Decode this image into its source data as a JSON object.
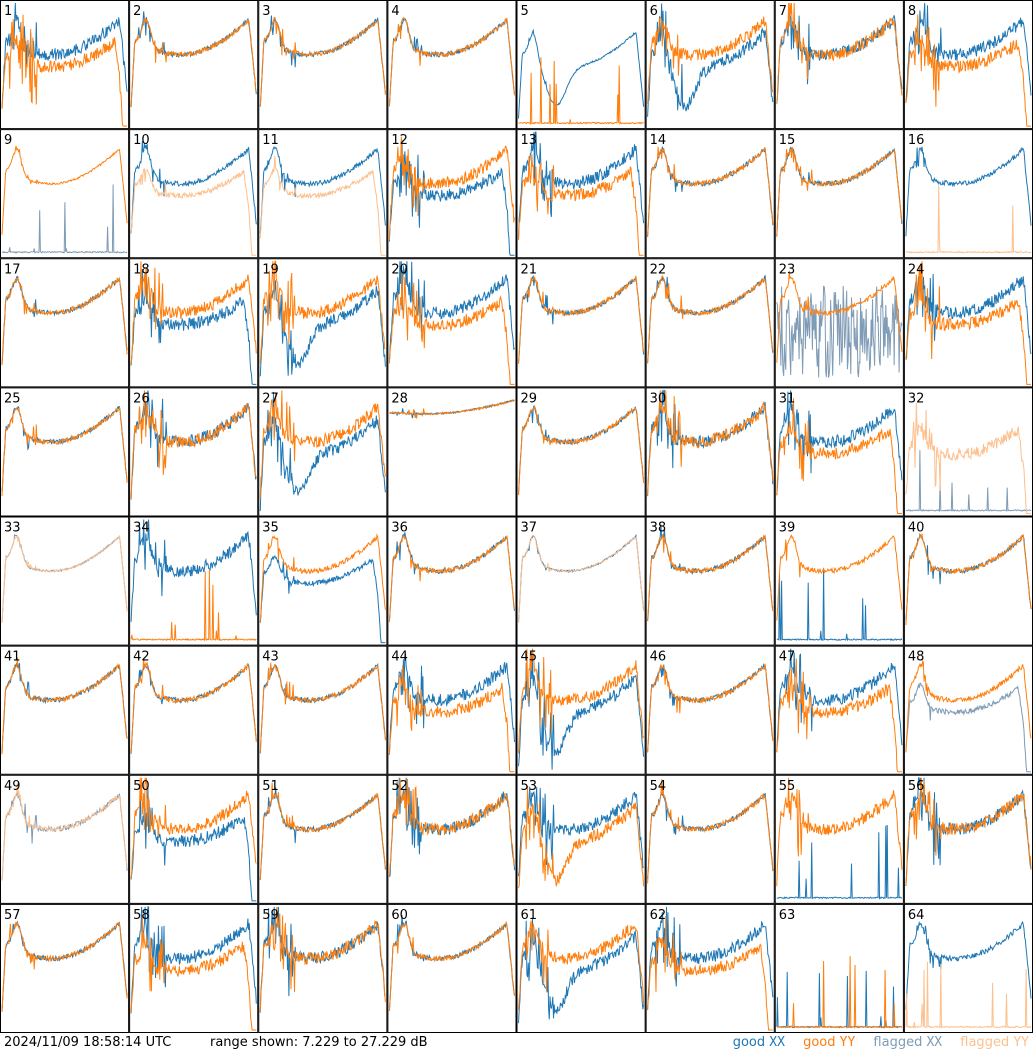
{
  "chart_data": {
    "type": "line",
    "layout": "8x8 small multiples",
    "panels": [
      "1",
      "2",
      "3",
      "4",
      "5",
      "6",
      "7",
      "8",
      "9",
      "10",
      "11",
      "12",
      "13",
      "14",
      "15",
      "16",
      "17",
      "18",
      "19",
      "20",
      "21",
      "22",
      "23",
      "24",
      "25",
      "26",
      "27",
      "28",
      "29",
      "30",
      "31",
      "32",
      "33",
      "34",
      "35",
      "36",
      "37",
      "38",
      "39",
      "40",
      "41",
      "42",
      "43",
      "44",
      "45",
      "46",
      "47",
      "48",
      "49",
      "50",
      "51",
      "52",
      "53",
      "54",
      "55",
      "56",
      "57",
      "58",
      "59",
      "60",
      "61",
      "62",
      "63",
      "64"
    ],
    "ylim": [
      7.229,
      27.229
    ],
    "yunit": "dB",
    "grid": false,
    "legend_position": "bottom-right",
    "series_legend": [
      {
        "word": "good",
        "pol": "XX",
        "color": "#1f77b4"
      },
      {
        "word": "good",
        "pol": "YY",
        "color": "#ff7f0e"
      },
      {
        "word": "flagged",
        "pol": "XX",
        "color": "#7f9bb5"
      },
      {
        "word": "flagged",
        "pol": "YY",
        "color": "#fdc08e"
      }
    ],
    "panel_styles": {
      "1": {
        "xx": "good",
        "yy": "good",
        "xxShape": "normal",
        "yyShape": "low",
        "noise": "high"
      },
      "2": {
        "xx": "good",
        "yy": "good",
        "xxShape": "normal",
        "yyShape": "normal",
        "noise": "mid"
      },
      "3": {
        "xx": "good",
        "yy": "good",
        "xxShape": "normal",
        "yyShape": "normal",
        "noise": "mid"
      },
      "4": {
        "xx": "good",
        "yy": "good",
        "xxShape": "normal",
        "yyShape": "normal",
        "noise": "mid"
      },
      "5": {
        "xx": "good",
        "yy": "good",
        "xxShape": "dip",
        "yyShape": "dead",
        "noise": "low"
      },
      "6": {
        "xx": "good",
        "yy": "good",
        "xxShape": "dip",
        "yyShape": "normal",
        "noise": "high"
      },
      "7": {
        "xx": "good",
        "yy": "good",
        "xxShape": "normal",
        "yyShape": "normal",
        "noise": "high"
      },
      "8": {
        "xx": "good",
        "yy": "good",
        "xxShape": "normal",
        "yyShape": "low",
        "noise": "high"
      },
      "9": {
        "xx": "flagged",
        "yy": "good",
        "xxShape": "dead",
        "yyShape": "normal",
        "noise": "low"
      },
      "10": {
        "xx": "good",
        "yy": "flagged",
        "xxShape": "normal",
        "yyShape": "low",
        "noise": "mid"
      },
      "11": {
        "xx": "good",
        "yy": "flagged",
        "xxShape": "normal",
        "yyShape": "low",
        "noise": "mid"
      },
      "12": {
        "xx": "good",
        "yy": "good",
        "xxShape": "low",
        "yyShape": "normal",
        "noise": "high"
      },
      "13": {
        "xx": "good",
        "yy": "good",
        "xxShape": "normal",
        "yyShape": "low",
        "noise": "high"
      },
      "14": {
        "xx": "good",
        "yy": "good",
        "xxShape": "normal",
        "yyShape": "normal",
        "noise": "mid"
      },
      "15": {
        "xx": "good",
        "yy": "good",
        "xxShape": "normal",
        "yyShape": "normal",
        "noise": "mid"
      },
      "16": {
        "xx": "good",
        "yy": "flagged",
        "xxShape": "normal",
        "yyShape": "dead",
        "noise": "mid"
      },
      "17": {
        "xx": "good",
        "yy": "good",
        "xxShape": "normal",
        "yyShape": "normal",
        "noise": "mid"
      },
      "18": {
        "xx": "good",
        "yy": "good",
        "xxShape": "low",
        "yyShape": "normal",
        "noise": "high"
      },
      "19": {
        "xx": "good",
        "yy": "good",
        "xxShape": "dip",
        "yyShape": "normal",
        "noise": "high"
      },
      "20": {
        "xx": "good",
        "yy": "good",
        "xxShape": "normal",
        "yyShape": "low",
        "noise": "high"
      },
      "21": {
        "xx": "good",
        "yy": "good",
        "xxShape": "normal",
        "yyShape": "normal",
        "noise": "mid"
      },
      "22": {
        "xx": "good",
        "yy": "good",
        "xxShape": "normal",
        "yyShape": "normal",
        "noise": "mid"
      },
      "23": {
        "xx": "flagged",
        "yy": "good",
        "xxShape": "noise",
        "yyShape": "normal",
        "noise": "mid"
      },
      "24": {
        "xx": "good",
        "yy": "good",
        "xxShape": "normal",
        "yyShape": "low",
        "noise": "high"
      },
      "25": {
        "xx": "good",
        "yy": "good",
        "xxShape": "normal",
        "yyShape": "normal",
        "noise": "mid"
      },
      "26": {
        "xx": "good",
        "yy": "good",
        "xxShape": "normal",
        "yyShape": "normal",
        "noise": "high"
      },
      "27": {
        "xx": "good",
        "yy": "good",
        "xxShape": "dip",
        "yyShape": "normal",
        "noise": "high"
      },
      "28": {
        "xx": "good",
        "yy": "good",
        "xxShape": "flat",
        "yyShape": "flat",
        "noise": "low"
      },
      "29": {
        "xx": "good",
        "yy": "good",
        "xxShape": "normal",
        "yyShape": "normal",
        "noise": "mid"
      },
      "30": {
        "xx": "good",
        "yy": "good",
        "xxShape": "normal",
        "yyShape": "normal",
        "noise": "high"
      },
      "31": {
        "xx": "good",
        "yy": "good",
        "xxShape": "normal",
        "yyShape": "low",
        "noise": "high"
      },
      "32": {
        "xx": "flagged",
        "yy": "flagged",
        "xxShape": "dead",
        "yyShape": "low",
        "noise": "high"
      },
      "33": {
        "xx": "flagged",
        "yy": "flagged",
        "xxShape": "normal",
        "yyShape": "normal",
        "noise": "low"
      },
      "34": {
        "xx": "good",
        "yy": "good",
        "xxShape": "normal",
        "yyShape": "dead",
        "noise": "high"
      },
      "35": {
        "xx": "good",
        "yy": "good",
        "xxShape": "low",
        "yyShape": "normal",
        "noise": "mid"
      },
      "36": {
        "xx": "good",
        "yy": "good",
        "xxShape": "normal",
        "yyShape": "normal",
        "noise": "mid"
      },
      "37": {
        "xx": "good",
        "yy": "flagged",
        "xxShape": "normal",
        "yyShape": "normal",
        "noise": "low"
      },
      "38": {
        "xx": "good",
        "yy": "good",
        "xxShape": "normal",
        "yyShape": "normal",
        "noise": "mid"
      },
      "39": {
        "xx": "good",
        "yy": "good",
        "xxShape": "dead",
        "yyShape": "normal",
        "noise": "mid"
      },
      "40": {
        "xx": "good",
        "yy": "good",
        "xxShape": "normal",
        "yyShape": "normal",
        "noise": "mid"
      },
      "41": {
        "xx": "good",
        "yy": "good",
        "xxShape": "normal",
        "yyShape": "normal",
        "noise": "mid"
      },
      "42": {
        "xx": "good",
        "yy": "good",
        "xxShape": "normal",
        "yyShape": "normal",
        "noise": "mid"
      },
      "43": {
        "xx": "good",
        "yy": "good",
        "xxShape": "normal",
        "yyShape": "normal",
        "noise": "mid"
      },
      "44": {
        "xx": "good",
        "yy": "good",
        "xxShape": "normal",
        "yyShape": "low",
        "noise": "high"
      },
      "45": {
        "xx": "good",
        "yy": "good",
        "xxShape": "dip",
        "yyShape": "normal",
        "noise": "high"
      },
      "46": {
        "xx": "good",
        "yy": "good",
        "xxShape": "normal",
        "yyShape": "normal",
        "noise": "mid"
      },
      "47": {
        "xx": "good",
        "yy": "good",
        "xxShape": "normal",
        "yyShape": "low",
        "noise": "high"
      },
      "48": {
        "xx": "flagged",
        "yy": "good",
        "xxShape": "low",
        "yyShape": "normal",
        "noise": "mid"
      },
      "49": {
        "xx": "flagged",
        "yy": "flagged",
        "xxShape": "normal",
        "yyShape": "normal",
        "noise": "mid"
      },
      "50": {
        "xx": "good",
        "yy": "good",
        "xxShape": "low",
        "yyShape": "normal",
        "noise": "high"
      },
      "51": {
        "xx": "good",
        "yy": "good",
        "xxShape": "normal",
        "yyShape": "normal",
        "noise": "mid"
      },
      "52": {
        "xx": "good",
        "yy": "good",
        "xxShape": "normal",
        "yyShape": "normal",
        "noise": "high"
      },
      "53": {
        "xx": "good",
        "yy": "good",
        "xxShape": "normal",
        "yyShape": "dip",
        "noise": "high"
      },
      "54": {
        "xx": "good",
        "yy": "good",
        "xxShape": "normal",
        "yyShape": "normal",
        "noise": "mid"
      },
      "55": {
        "xx": "good",
        "yy": "good",
        "xxShape": "dead",
        "yyShape": "normal",
        "noise": "high"
      },
      "56": {
        "xx": "good",
        "yy": "good",
        "xxShape": "normal",
        "yyShape": "normal",
        "noise": "high"
      },
      "57": {
        "xx": "good",
        "yy": "good",
        "xxShape": "normal",
        "yyShape": "normal",
        "noise": "mid"
      },
      "58": {
        "xx": "good",
        "yy": "good",
        "xxShape": "normal",
        "yyShape": "low",
        "noise": "high"
      },
      "59": {
        "xx": "good",
        "yy": "good",
        "xxShape": "normal",
        "yyShape": "normal",
        "noise": "high"
      },
      "60": {
        "xx": "good",
        "yy": "good",
        "xxShape": "normal",
        "yyShape": "normal",
        "noise": "mid"
      },
      "61": {
        "xx": "good",
        "yy": "good",
        "xxShape": "dip",
        "yyShape": "normal",
        "noise": "high"
      },
      "62": {
        "xx": "good",
        "yy": "good",
        "xxShape": "normal",
        "yyShape": "low",
        "noise": "high"
      },
      "63": {
        "xx": "good",
        "yy": "good",
        "xxShape": "dead",
        "yyShape": "dead",
        "noise": "high"
      },
      "64": {
        "xx": "good",
        "yy": "flagged",
        "xxShape": "normal",
        "yyShape": "dead",
        "noise": "mid"
      }
    }
  },
  "footer": {
    "timestamp": "2024/11/09 18:58:14 UTC",
    "range": "range shown: 7.229 to 27.229 dB"
  }
}
